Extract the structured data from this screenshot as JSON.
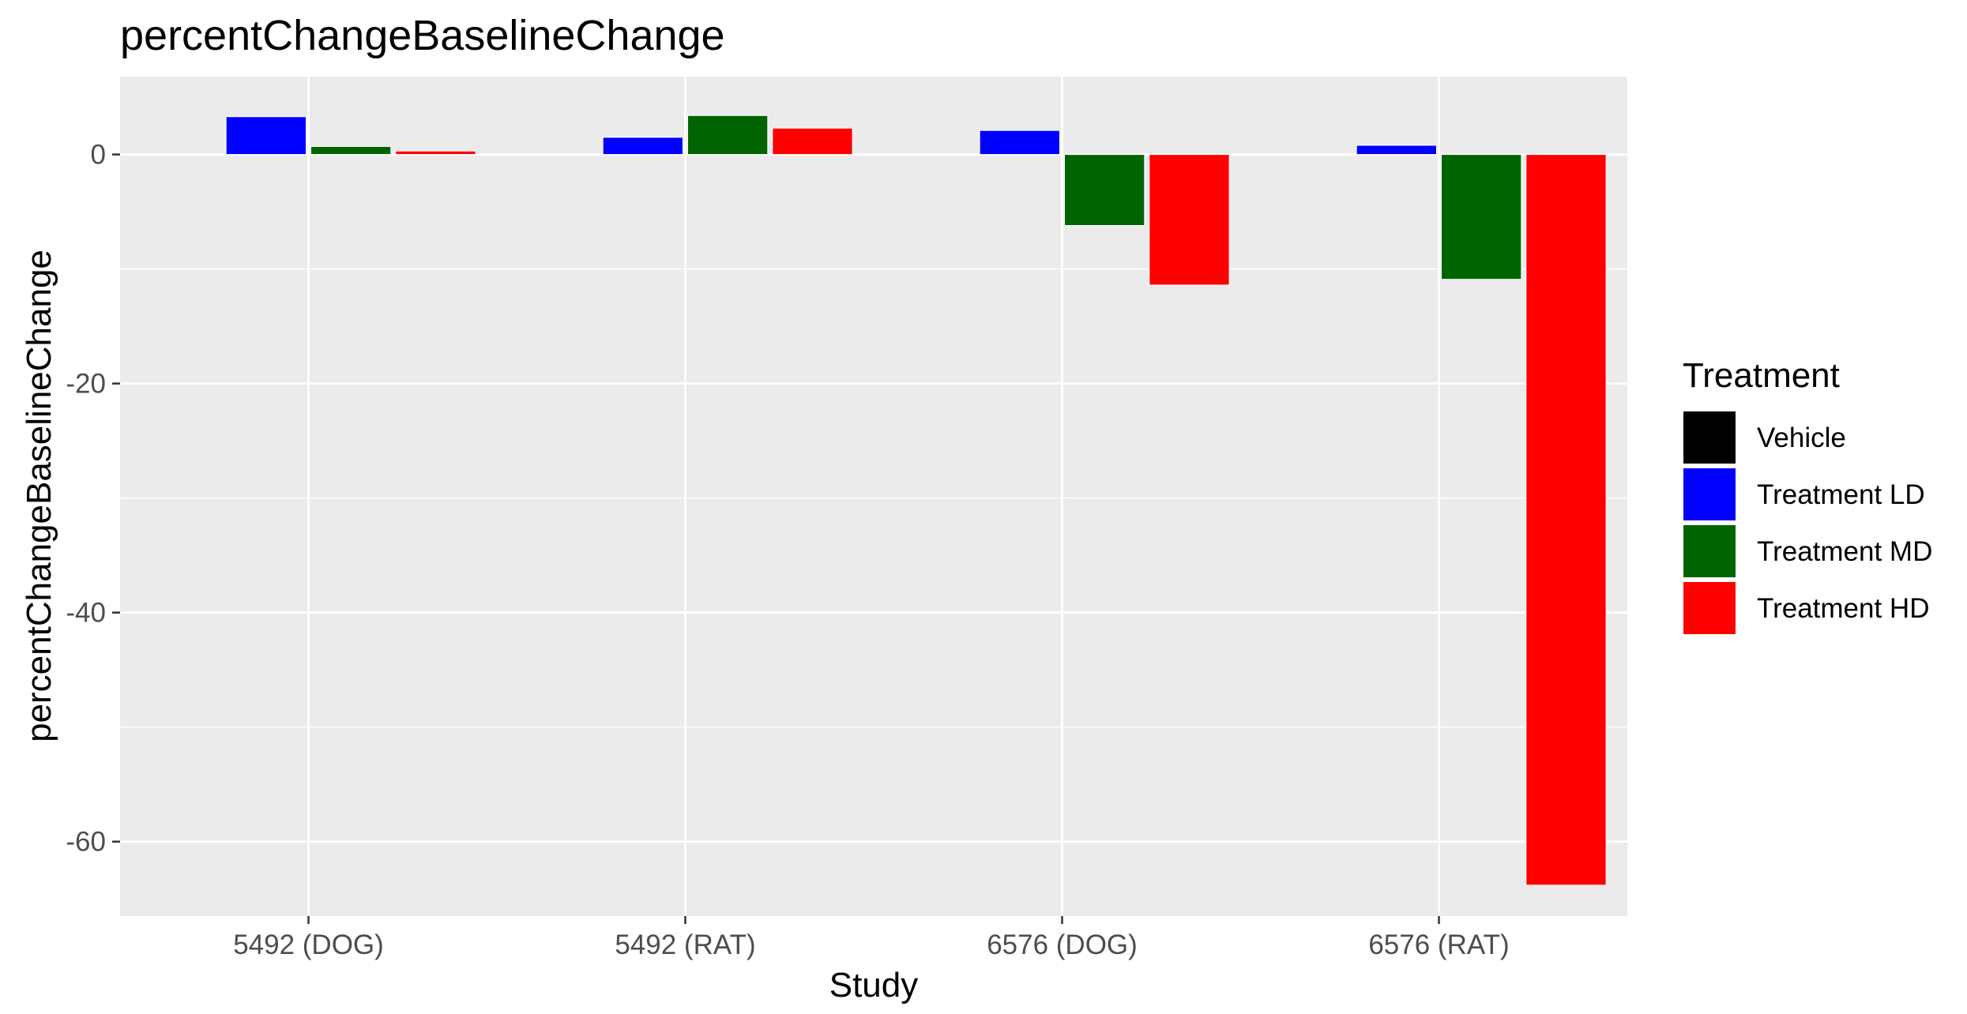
{
  "chart_data": {
    "type": "bar",
    "title": "percentChangeBaselineChange",
    "xlabel": "Study",
    "ylabel": "percentChangeBaselineChange",
    "categories": [
      "5492 (DOG)",
      "5492 (RAT)",
      "6576 (DOG)",
      "6576 (RAT)"
    ],
    "yticks": [
      0,
      -20,
      -40,
      -60
    ],
    "ylim": [
      -66.5,
      6.8
    ],
    "grid": true,
    "legend": {
      "title": "Treatment",
      "position": "right"
    },
    "series": [
      {
        "name": "Vehicle",
        "color": "#000000",
        "values": [
          0,
          0,
          0,
          0
        ]
      },
      {
        "name": "Treatment LD",
        "color": "#0000FF",
        "values": [
          3.3,
          1.5,
          2.1,
          0.8
        ]
      },
      {
        "name": "Treatment MD",
        "color": "#006400",
        "values": [
          0.7,
          3.4,
          -6.2,
          -10.9
        ]
      },
      {
        "name": "Treatment HD",
        "color": "#FF0000",
        "values": [
          0.3,
          2.3,
          -11.4,
          -63.8
        ]
      }
    ]
  }
}
